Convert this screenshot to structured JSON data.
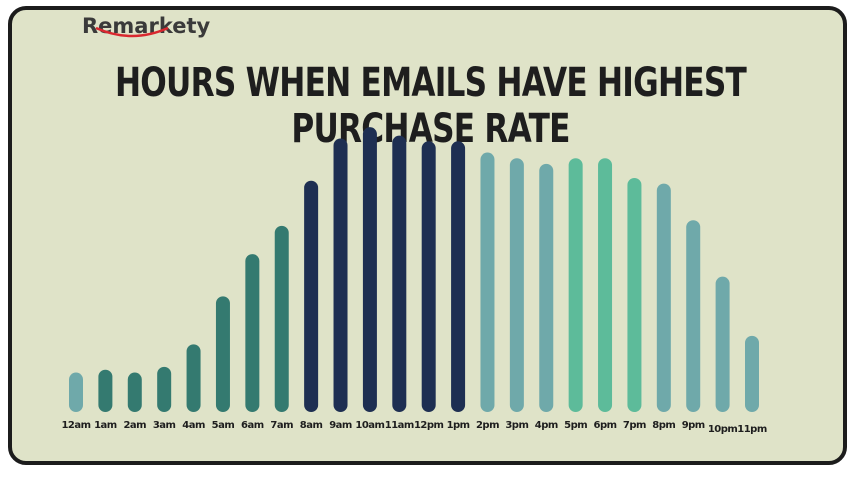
{
  "brand": {
    "logo_text": "Remarkety"
  },
  "chart_data": {
    "type": "bar",
    "title": "HOURS WHEN EMAILS HAVE HIGHEST PURCHASE RATE",
    "xlabel": "",
    "ylabel": "",
    "grid": false,
    "legend": "none",
    "ylim": [
      0,
      100
    ],
    "categories": [
      "12am",
      "1am",
      "2am",
      "3am",
      "4am",
      "5am",
      "6am",
      "7am",
      "8am",
      "9am",
      "10am",
      "11am",
      "12pm",
      "1pm",
      "2pm",
      "3pm",
      "4pm",
      "5pm",
      "6pm",
      "7pm",
      "8pm",
      "9pm",
      "10pm",
      "11pm"
    ],
    "values": [
      14,
      15,
      14,
      16,
      24,
      41,
      56,
      66,
      82,
      97,
      101,
      98,
      96,
      96,
      92,
      90,
      88,
      90,
      90,
      83,
      81,
      68,
      48,
      27
    ],
    "colors": [
      "#6fa9aa",
      "#347a70",
      "#347a70",
      "#347a70",
      "#347a70",
      "#347a70",
      "#347a70",
      "#347a70",
      "#1e2f52",
      "#1e2f52",
      "#1e2f52",
      "#1e2f52",
      "#1e2f52",
      "#1e2f52",
      "#6fa9aa",
      "#6fa9aa",
      "#6fa9aa",
      "#5dbb9a",
      "#5dbb9a",
      "#5dbb9a",
      "#6fa9aa",
      "#6fa9aa",
      "#6fa9aa",
      "#6fa9aa"
    ]
  }
}
